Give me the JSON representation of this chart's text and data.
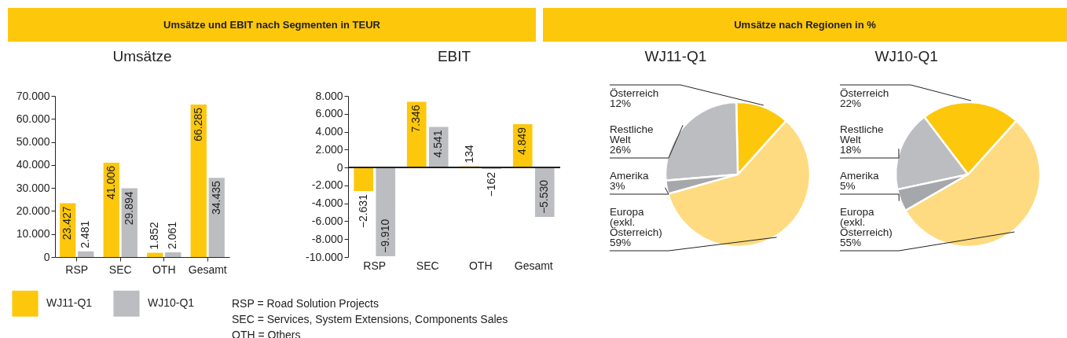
{
  "chart_data": [
    {
      "type": "bar",
      "title": "Umsätze",
      "categories": [
        "RSP",
        "SEC",
        "OTH",
        "Gesamt"
      ],
      "series": [
        {
          "name": "WJ11-Q1",
          "color": "#fdc70c",
          "values": [
            23427,
            41006,
            1852,
            66285
          ],
          "value_labels": [
            "23.427",
            "41.006",
            "1.852",
            "66.285"
          ]
        },
        {
          "name": "WJ10-Q1",
          "color": "#bcbdc0",
          "values": [
            2481,
            29894,
            2061,
            34435
          ],
          "value_labels": [
            "2.481",
            "29.894",
            "2.061",
            "34.435"
          ]
        }
      ],
      "ylim": [
        0,
        70000
      ],
      "yticks": [
        0,
        {
          "value": 10000,
          "label": "10.000"
        },
        {
          "value": 20000,
          "label": "20.000"
        },
        {
          "value": 30000,
          "label": "30.000"
        },
        {
          "value": 40000,
          "label": "40.000"
        },
        {
          "value": 50000,
          "label": "50.000"
        },
        {
          "value": 60000,
          "label": "60.000"
        },
        {
          "value": 70000,
          "label": "70.000"
        }
      ],
      "legend": "bottom",
      "annotations": [
        "Umsätze und EBIT nach Segmenten in TEUR",
        "RSP = Road Solution Projects",
        "SEC = Services, System Extensions, Components Sales",
        "OTH = Others"
      ]
    },
    {
      "type": "bar",
      "title": "EBIT",
      "categories": [
        "RSP",
        "SEC",
        "OTH",
        "Gesamt"
      ],
      "series": [
        {
          "color": "#fdc70c",
          "values": [
            -2631,
            7346,
            134,
            4849
          ],
          "value_labels": [
            "−2.631",
            "7.346",
            "134",
            "4.849"
          ]
        },
        {
          "color": "#bcbdc0",
          "values": [
            -9910,
            4541,
            -162,
            -5530
          ],
          "value_labels": [
            "−9.910",
            "4.541",
            "−162",
            "−5.530"
          ]
        }
      ],
      "ylim": [
        -10000,
        8000
      ],
      "yticks": [
        {
          "value": -10000,
          "label": "-10.000"
        },
        {
          "value": -8000,
          "label": "-8.000"
        },
        {
          "value": -6000,
          "label": "-6.000"
        },
        {
          "value": -4000,
          "label": "-4.000"
        },
        {
          "value": -2000,
          "label": "-2.000"
        },
        0,
        {
          "value": 2000,
          "label": "2.000"
        },
        {
          "value": 4000,
          "label": "4.000"
        },
        {
          "value": 6000,
          "label": "6.000"
        },
        {
          "value": 8000,
          "label": "8.000"
        }
      ]
    },
    {
      "type": "pie",
      "title": "WJ11-Q1",
      "categories": [
        "Österreich",
        "Restliche Welt",
        "Amerika",
        "Europa (exkl. Österreich)"
      ],
      "values": [
        12,
        26,
        3,
        59
      ],
      "value_labels": [
        "12%",
        "26%",
        "3%",
        "59%"
      ],
      "colors": [
        "#fdc70c",
        "#bcbdc0",
        "#a6a7aa",
        "#fedb80"
      ],
      "annotations": [
        "Umsätze nach Regionen in %"
      ]
    },
    {
      "type": "pie",
      "title": "WJ10-Q1",
      "categories": [
        "Österreich",
        "Restliche Welt",
        "Amerika",
        "Europa (exkl. Österreich)"
      ],
      "values": [
        22,
        18,
        5,
        55
      ],
      "value_labels": [
        "22%",
        "18%",
        "5%",
        "55%"
      ],
      "colors": [
        "#fdc70c",
        "#bcbdc0",
        "#a6a7aa",
        "#fedb80"
      ]
    }
  ]
}
